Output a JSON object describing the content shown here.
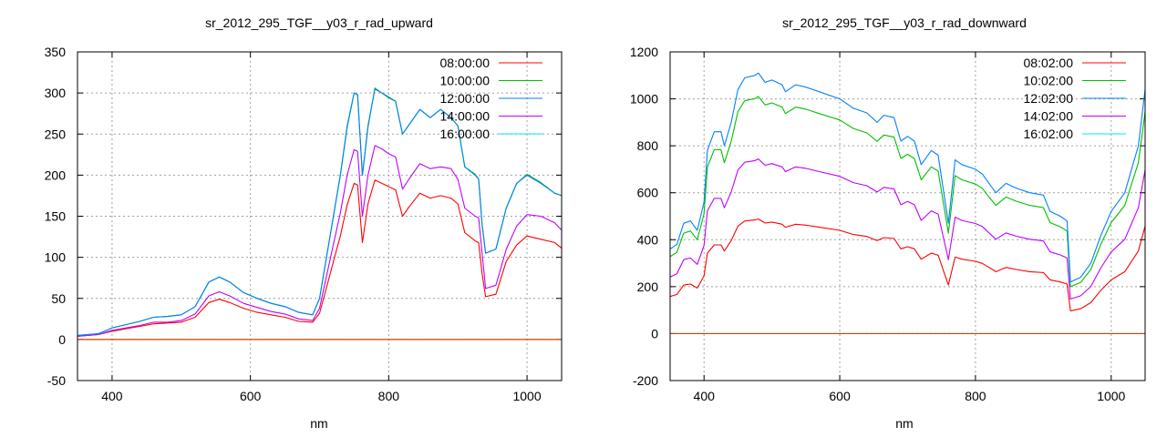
{
  "chart_data": [
    {
      "type": "line",
      "title": "sr_2012_295_TGF__y03_r_rad_upward",
      "xlabel": "nm",
      "ylabel": "",
      "xlim": [
        350,
        1050
      ],
      "ylim": [
        -50,
        350
      ],
      "xticks": [
        400,
        600,
        800,
        1000
      ],
      "yticks": [
        -50,
        0,
        50,
        100,
        150,
        200,
        250,
        300,
        350
      ],
      "grid": true,
      "legend_position": "top-right",
      "zero_line_color": "#c84400",
      "x": [
        350,
        380,
        400,
        420,
        440,
        460,
        480,
        500,
        520,
        540,
        555,
        570,
        590,
        610,
        630,
        650,
        670,
        690,
        700,
        710,
        720,
        730,
        740,
        750,
        755,
        762,
        770,
        780,
        790,
        800,
        810,
        820,
        830,
        845,
        860,
        875,
        890,
        900,
        910,
        925,
        930,
        935,
        940,
        955,
        970,
        985,
        1000,
        1020,
        1040,
        1050
      ],
      "series": [
        {
          "name": "08:00:00",
          "color": "#ff0000",
          "values": [
            4,
            6,
            10,
            13,
            16,
            19,
            20,
            21,
            27,
            45,
            49,
            45,
            38,
            33,
            30,
            27,
            22,
            21,
            32,
            63,
            95,
            126,
            164,
            190,
            188,
            118,
            165,
            194,
            190,
            186,
            182,
            150,
            162,
            178,
            172,
            175,
            172,
            165,
            130,
            120,
            118,
            80,
            52,
            55,
            95,
            115,
            126,
            122,
            118,
            111
          ]
        },
        {
          "name": "10:00:00",
          "color": "#00c000",
          "values": [
            5,
            7,
            14,
            18,
            22,
            27,
            28,
            30,
            40,
            70,
            76,
            70,
            57,
            50,
            44,
            40,
            33,
            30,
            50,
            100,
            150,
            200,
            258,
            300,
            298,
            200,
            258,
            306,
            300,
            294,
            290,
            250,
            262,
            280,
            270,
            280,
            270,
            260,
            210,
            201,
            195,
            140,
            105,
            110,
            160,
            190,
            201,
            191,
            178,
            175
          ]
        },
        {
          "name": "12:00:00",
          "color": "#0080ff",
          "values": [
            5,
            7,
            14,
            18,
            22,
            27,
            28,
            30,
            40,
            70,
            76,
            70,
            57,
            50,
            44,
            40,
            33,
            30,
            50,
            100,
            150,
            200,
            260,
            300,
            298,
            200,
            260,
            305,
            300,
            295,
            290,
            250,
            262,
            280,
            270,
            280,
            270,
            260,
            210,
            200,
            195,
            140,
            105,
            110,
            160,
            190,
            200,
            190,
            178,
            175
          ]
        },
        {
          "name": "14:00:00",
          "color": "#c000ff",
          "values": [
            4,
            6,
            11,
            14,
            17,
            21,
            21,
            23,
            31,
            53,
            58,
            53,
            44,
            39,
            34,
            31,
            25,
            23,
            38,
            77,
            116,
            154,
            200,
            231,
            229,
            150,
            200,
            236,
            232,
            226,
            222,
            183,
            196,
            214,
            208,
            210,
            208,
            195,
            160,
            150,
            148,
            105,
            62,
            66,
            110,
            138,
            152,
            150,
            142,
            133
          ]
        },
        {
          "name": "16:00:00",
          "color": "#00eeee",
          "values": [
            0,
            0,
            0,
            0,
            0,
            0,
            0,
            0,
            0,
            0,
            0,
            0,
            0,
            0,
            0,
            0,
            0,
            0,
            0,
            0,
            0,
            0,
            0,
            0,
            0,
            0,
            0,
            0,
            0,
            0,
            0,
            0,
            0,
            0,
            0,
            0,
            0,
            0,
            0,
            0,
            0,
            0,
            0,
            0,
            0,
            0,
            0,
            0,
            0,
            0
          ]
        }
      ]
    },
    {
      "type": "line",
      "title": "sr_2012_295_TGF__y03_r_rad_downward",
      "xlabel": "nm",
      "ylabel": "",
      "xlim": [
        350,
        1050
      ],
      "ylim": [
        -200,
        1200
      ],
      "xticks": [
        400,
        600,
        800,
        1000
      ],
      "yticks": [
        -200,
        0,
        200,
        400,
        600,
        800,
        1000,
        1200
      ],
      "grid": true,
      "legend_position": "top-right",
      "zero_line_color": "#c84400",
      "x": [
        350,
        360,
        370,
        380,
        390,
        400,
        405,
        415,
        425,
        430,
        440,
        450,
        460,
        475,
        480,
        490,
        500,
        515,
        520,
        535,
        550,
        570,
        600,
        620,
        640,
        655,
        665,
        680,
        690,
        700,
        710,
        720,
        735,
        745,
        760,
        770,
        780,
        800,
        810,
        820,
        830,
        845,
        860,
        880,
        900,
        910,
        925,
        935,
        940,
        955,
        970,
        985,
        1000,
        1020,
        1040,
        1050
      ],
      "series": [
        {
          "name": "08:02:00",
          "color": "#ff0000",
          "values": [
            158,
            167,
            207,
            211,
            194,
            246,
            343,
            378,
            378,
            352,
            396,
            458,
            480,
            484,
            488,
            471,
            475,
            466,
            453,
            466,
            462,
            453,
            440,
            422,
            414,
            396,
            409,
            405,
            361,
            370,
            361,
            317,
            343,
            334,
            207,
            326,
            317,
            308,
            299,
            282,
            264,
            282,
            273,
            264,
            260,
            229,
            220,
            211,
            97,
            106,
            132,
            185,
            229,
            264,
            352,
            458
          ]
        },
        {
          "name": "10:02:00",
          "color": "#00c000",
          "values": [
            328,
            346,
            428,
            437,
            400,
            510,
            710,
            783,
            783,
            728,
            819,
            946,
            992,
            1001,
            1010,
            974,
            983,
            965,
            937,
            965,
            956,
            937,
            910,
            874,
            855,
            819,
            846,
            837,
            746,
            764,
            746,
            655,
            710,
            692,
            428,
            673,
            655,
            637,
            619,
            582,
            546,
            582,
            564,
            546,
            537,
            473,
            455,
            437,
            200,
            218,
            273,
            382,
            473,
            546,
            728,
            946
          ]
        },
        {
          "name": "12:02:00",
          "color": "#0080ff",
          "values": [
            360,
            380,
            470,
            480,
            440,
            560,
            780,
            860,
            860,
            800,
            900,
            1040,
            1090,
            1100,
            1110,
            1070,
            1080,
            1060,
            1030,
            1060,
            1050,
            1030,
            1000,
            960,
            940,
            900,
            930,
            920,
            820,
            840,
            820,
            720,
            780,
            760,
            470,
            740,
            720,
            700,
            680,
            640,
            600,
            640,
            620,
            600,
            590,
            520,
            500,
            480,
            220,
            240,
            300,
            420,
            520,
            600,
            800,
            1040
          ]
        },
        {
          "name": "14:02:00",
          "color": "#c000ff",
          "values": [
            241,
            255,
            315,
            322,
            295,
            375,
            523,
            576,
            576,
            536,
            603,
            697,
            730,
            737,
            744,
            717,
            724,
            710,
            690,
            710,
            704,
            690,
            670,
            643,
            630,
            603,
            623,
            616,
            549,
            563,
            549,
            482,
            523,
            509,
            315,
            496,
            482,
            469,
            456,
            429,
            402,
            429,
            415,
            402,
            395,
            348,
            335,
            322,
            147,
            161,
            201,
            281,
            348,
            402,
            536,
            697
          ]
        },
        {
          "name": "16:02:00",
          "color": "#00eeee",
          "values": [
            0,
            0,
            0,
            0,
            0,
            0,
            0,
            0,
            0,
            0,
            0,
            0,
            0,
            0,
            0,
            0,
            0,
            0,
            0,
            0,
            0,
            0,
            0,
            0,
            0,
            0,
            0,
            0,
            0,
            0,
            0,
            0,
            0,
            0,
            0,
            0,
            0,
            0,
            0,
            0,
            0,
            0,
            0,
            0,
            0,
            0,
            0,
            0,
            0,
            0,
            0,
            0,
            0,
            0,
            0,
            0
          ]
        }
      ]
    }
  ]
}
